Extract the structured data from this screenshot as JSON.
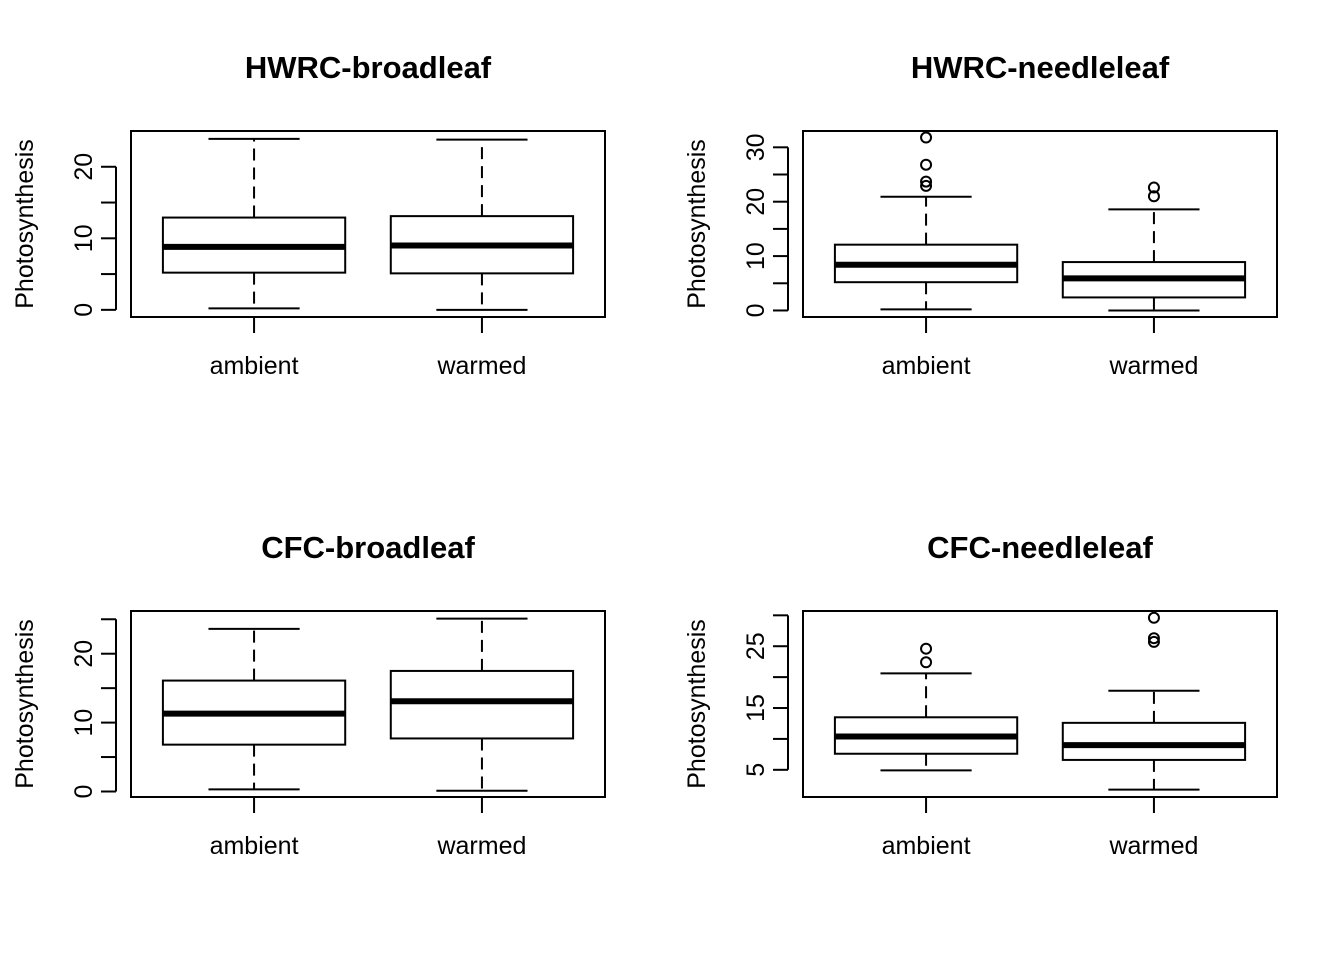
{
  "chart_data": [
    {
      "type": "boxplot",
      "title": "HWRC-broadleaf",
      "ylabel": "Photosynthesis",
      "categories": [
        "ambient",
        "warmed"
      ],
      "ylim": [
        -1,
        25
      ],
      "yticks": [
        0,
        5,
        10,
        15,
        20
      ],
      "ytick_labels": [
        "0",
        "10",
        "20"
      ],
      "boxes": [
        {
          "category": "ambient",
          "whisker_low": 0.2,
          "q1": 5.2,
          "median": 8.8,
          "q3": 12.9,
          "whisker_high": 23.9,
          "outliers": []
        },
        {
          "category": "warmed",
          "whisker_low": 0.0,
          "q1": 5.1,
          "median": 9.0,
          "q3": 13.1,
          "whisker_high": 23.8,
          "outliers": []
        }
      ]
    },
    {
      "type": "boxplot",
      "title": "HWRC-needleleaf",
      "ylabel": "Photosynthesis",
      "categories": [
        "ambient",
        "warmed"
      ],
      "ylim": [
        -1.2,
        33
      ],
      "yticks": [
        0,
        5,
        10,
        15,
        20,
        25,
        30
      ],
      "ytick_labels": [
        "0",
        "10",
        "20",
        "30"
      ],
      "boxes": [
        {
          "category": "ambient",
          "whisker_low": 0.2,
          "q1": 5.2,
          "median": 8.4,
          "q3": 12.1,
          "whisker_high": 20.9,
          "outliers": [
            22.9,
            23.7,
            26.8,
            31.8
          ]
        },
        {
          "category": "warmed",
          "whisker_low": 0.0,
          "q1": 2.4,
          "median": 5.9,
          "q3": 8.9,
          "whisker_high": 18.6,
          "outliers": [
            21.0,
            22.6
          ]
        }
      ]
    },
    {
      "type": "boxplot",
      "title": "CFC-broadleaf",
      "ylabel": "Photosynthesis",
      "categories": [
        "ambient",
        "warmed"
      ],
      "ylim": [
        -0.8,
        26.2
      ],
      "yticks": [
        0,
        5,
        10,
        15,
        20,
        25
      ],
      "ytick_labels": [
        "0",
        "10",
        "20"
      ],
      "boxes": [
        {
          "category": "ambient",
          "whisker_low": 0.3,
          "q1": 6.8,
          "median": 11.3,
          "q3": 16.1,
          "whisker_high": 23.6,
          "outliers": []
        },
        {
          "category": "warmed",
          "whisker_low": 0.1,
          "q1": 7.7,
          "median": 13.1,
          "q3": 17.5,
          "whisker_high": 25.1,
          "outliers": []
        }
      ]
    },
    {
      "type": "boxplot",
      "title": "CFC-needleleaf",
      "ylabel": "Photosynthesis",
      "categories": [
        "ambient",
        "warmed"
      ],
      "ylim": [
        0.6,
        30.7
      ],
      "yticks": [
        5,
        10,
        15,
        20,
        25,
        30
      ],
      "ytick_labels": [
        "5",
        "15",
        "25"
      ],
      "boxes": [
        {
          "category": "ambient",
          "whisker_low": 4.9,
          "q1": 7.6,
          "median": 10.4,
          "q3": 13.5,
          "whisker_high": 20.6,
          "outliers": [
            22.4,
            24.6
          ]
        },
        {
          "category": "warmed",
          "whisker_low": 1.8,
          "q1": 6.6,
          "median": 9.0,
          "q3": 12.6,
          "whisker_high": 17.8,
          "outliers": [
            25.7,
            26.3,
            29.6
          ]
        }
      ]
    }
  ]
}
